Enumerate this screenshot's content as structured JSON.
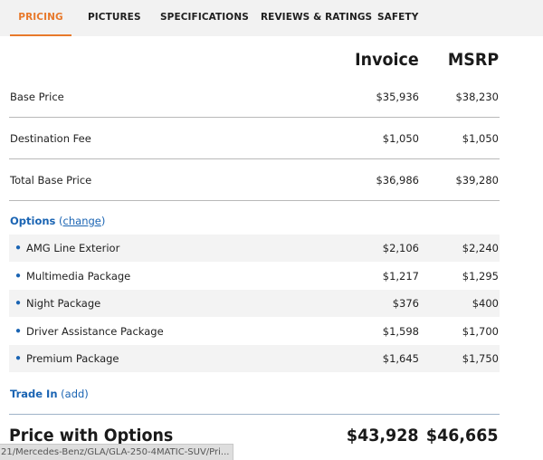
{
  "tabs": [
    {
      "label": "PRICING",
      "active": true
    },
    {
      "label": "PICTURES",
      "active": false
    },
    {
      "label": "SPECIFICATIONS",
      "active": false
    },
    {
      "label": "REVIEWS & RATINGS",
      "active": false
    },
    {
      "label": "SAFETY",
      "active": false
    }
  ],
  "columns": {
    "invoice": "Invoice",
    "msrp": "MSRP"
  },
  "base_rows": [
    {
      "label": "Base Price",
      "invoice": "$35,936",
      "msrp": "$38,230"
    },
    {
      "label": "Destination Fee",
      "invoice": "$1,050",
      "msrp": "$1,050"
    },
    {
      "label": "Total Base Price",
      "invoice": "$36,986",
      "msrp": "$39,280"
    }
  ],
  "options": {
    "title": "Options",
    "link": "change",
    "items": [
      {
        "label": "AMG Line Exterior",
        "invoice": "$2,106",
        "msrp": "$2,240"
      },
      {
        "label": "Multimedia Package",
        "invoice": "$1,217",
        "msrp": "$1,295"
      },
      {
        "label": "Night Package",
        "invoice": "$376",
        "msrp": "$400"
      },
      {
        "label": "Driver Assistance Package",
        "invoice": "$1,598",
        "msrp": "$1,700"
      },
      {
        "label": "Premium Package",
        "invoice": "$1,645",
        "msrp": "$1,750"
      }
    ]
  },
  "trade_in": {
    "title": "Trade In",
    "link": "(add)"
  },
  "total": {
    "label": "Price with Options",
    "invoice": "$43,928",
    "msrp": "$46,665"
  },
  "status_bar": {
    "url": "21/Mercedes-Benz/GLA/GLA-250-4MATIC-SUV/Pri..."
  },
  "colors": {
    "accent": "#e8792b",
    "link": "#1a64b3"
  }
}
